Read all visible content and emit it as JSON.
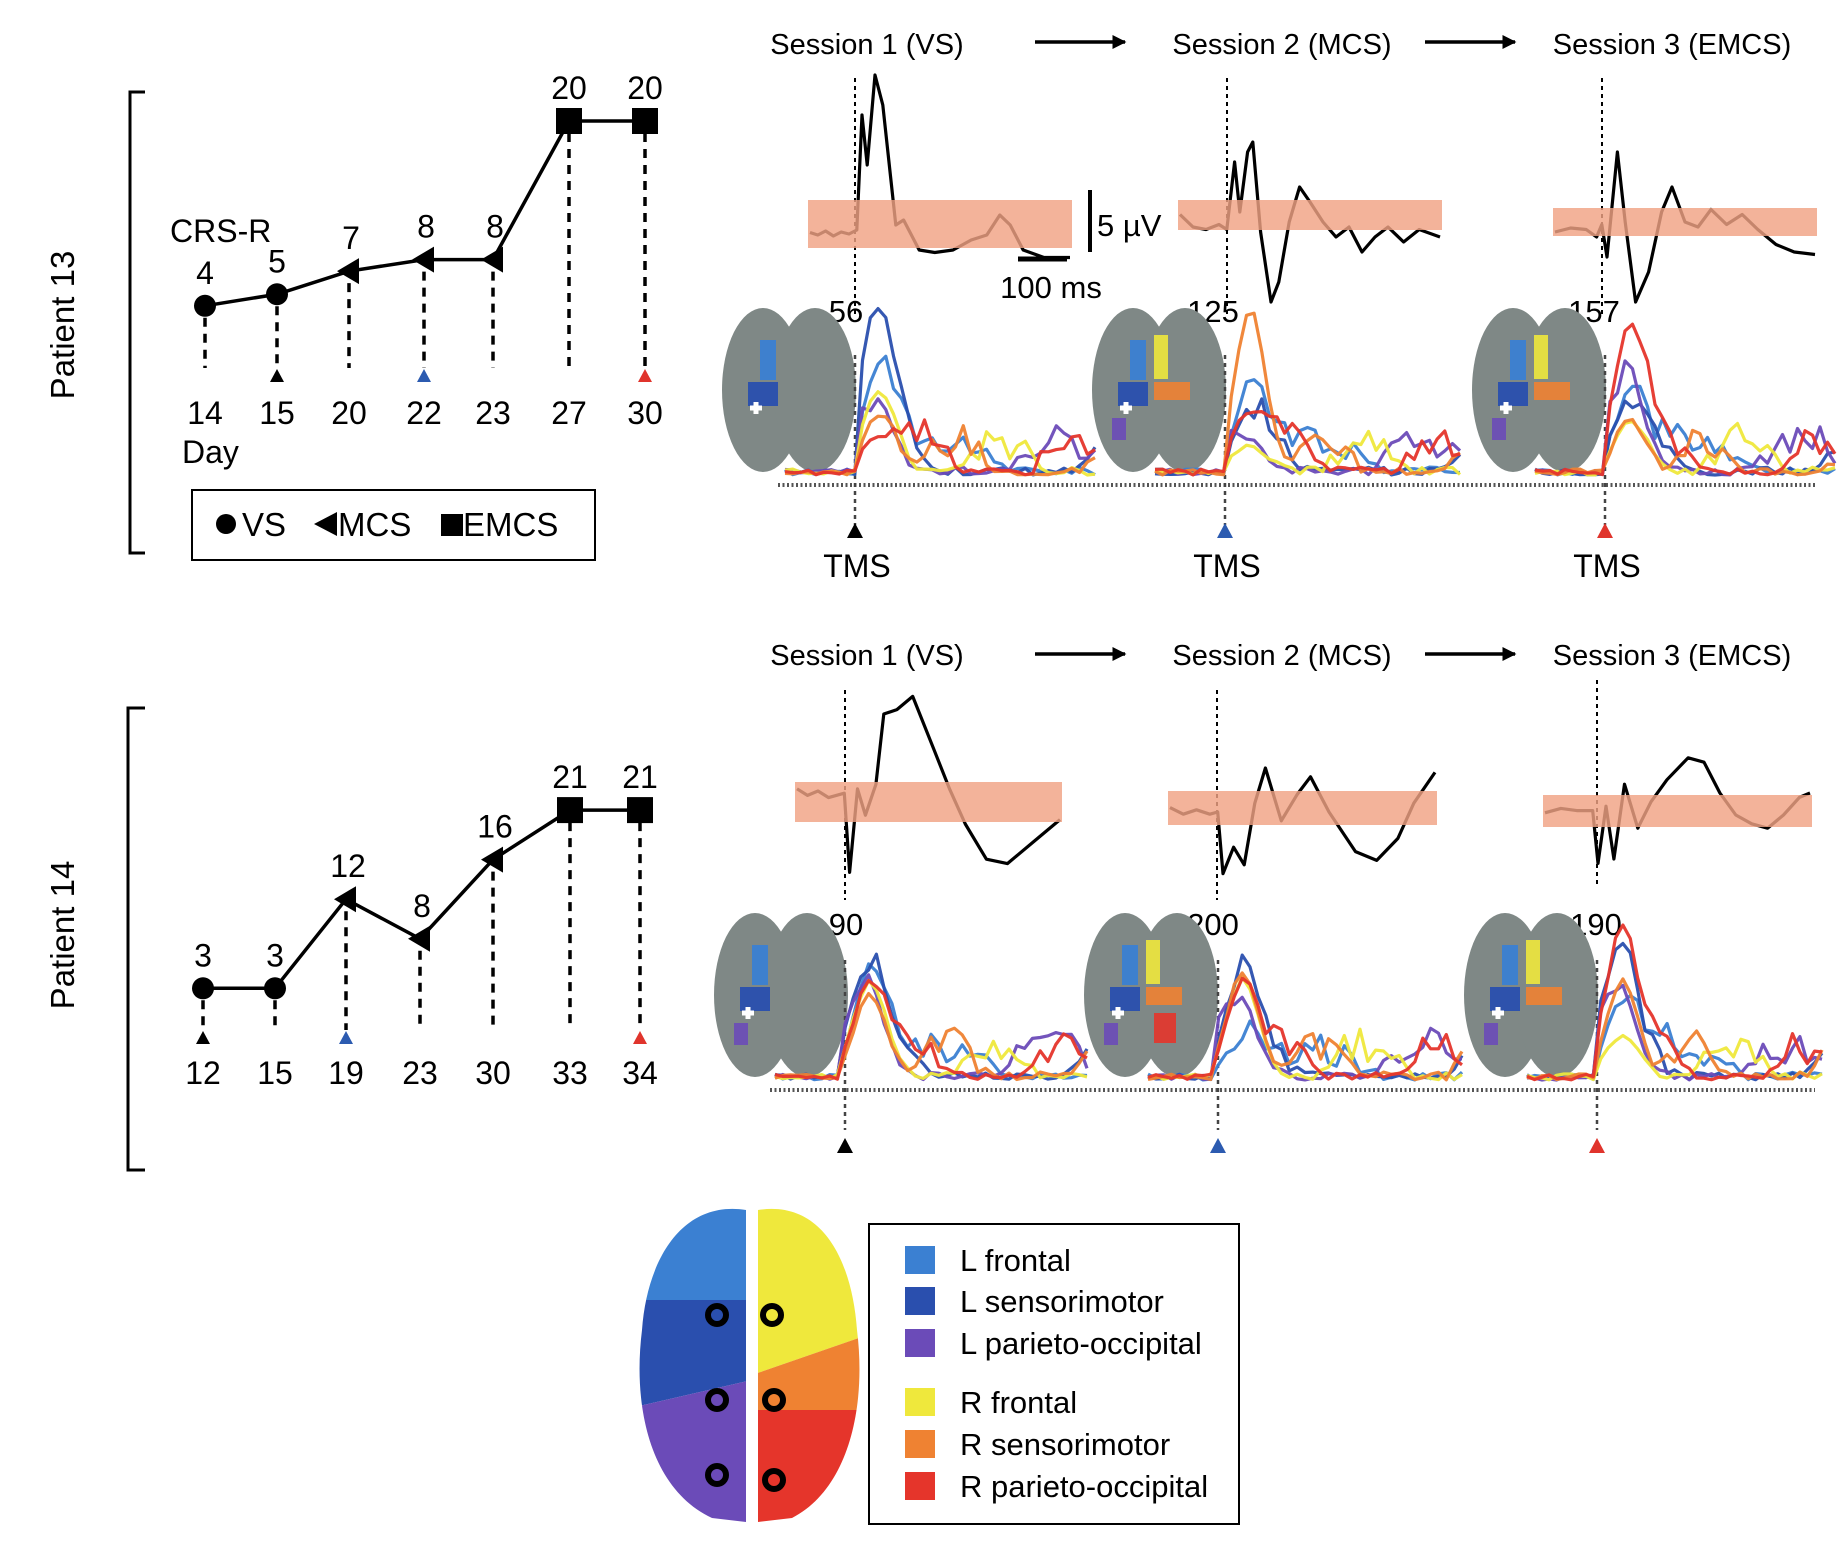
{
  "chart_data": {
    "type": "line",
    "title": "",
    "legend_markers": [
      {
        "marker": "circle",
        "label": "VS"
      },
      {
        "marker": "triangle-left",
        "label": "MCS"
      },
      {
        "marker": "square",
        "label": "EMCS"
      }
    ],
    "patients": [
      {
        "name": "Patient 13",
        "ylabel": "CRS-R",
        "xlabel": "Day",
        "points": [
          {
            "day": "14",
            "score": 4,
            "state": "VS",
            "tms": null
          },
          {
            "day": "15",
            "score": 5,
            "state": "VS",
            "tms": "session1"
          },
          {
            "day": "20",
            "score": 7,
            "state": "MCS",
            "tms": null
          },
          {
            "day": "22",
            "score": 8,
            "state": "MCS",
            "tms": "session2"
          },
          {
            "day": "23",
            "score": 8,
            "state": "MCS",
            "tms": null
          },
          {
            "day": "27",
            "score": 20,
            "state": "EMCS",
            "tms": null
          },
          {
            "day": "30",
            "score": 20,
            "state": "EMCS",
            "tms": "session3"
          }
        ],
        "sessions": [
          {
            "title": "Session 1 (VS)",
            "significant_sources": "56",
            "tms_label": "TMS",
            "marker_color": "#000000"
          },
          {
            "title": "Session 2 (MCS)",
            "significant_sources": "125",
            "tms_label": "TMS",
            "marker_color": "#2c5bb0"
          },
          {
            "title": "Session 3 (EMCS)",
            "significant_sources": "157",
            "tms_label": "TMS",
            "marker_color": "#e0342c"
          }
        ]
      },
      {
        "name": "Patient 14",
        "ylabel": "",
        "xlabel": "",
        "points": [
          {
            "day": "12",
            "score": 3,
            "state": "VS",
            "tms": "session1"
          },
          {
            "day": "15",
            "score": 3,
            "state": "VS",
            "tms": null
          },
          {
            "day": "19",
            "score": 12,
            "state": "MCS",
            "tms": "session2"
          },
          {
            "day": "23",
            "score": 8,
            "state": "MCS",
            "tms": null
          },
          {
            "day": "30",
            "score": 16,
            "state": "MCS",
            "tms": null
          },
          {
            "day": "33",
            "score": 21,
            "state": "EMCS",
            "tms": null
          },
          {
            "day": "34",
            "score": 21,
            "state": "EMCS",
            "tms": "session3"
          }
        ],
        "sessions": [
          {
            "title": "Session 1 (VS)",
            "significant_sources": "90",
            "tms_label": "",
            "marker_color": "#000000"
          },
          {
            "title": "Session 2 (MCS)",
            "significant_sources": "200",
            "tms_label": "",
            "marker_color": "#2c5bb0"
          },
          {
            "title": "Session 3 (EMCS)",
            "significant_sources": "190",
            "tms_label": "",
            "marker_color": "#e0342c"
          }
        ]
      }
    ],
    "scale_bars": {
      "amplitude": "5 µV",
      "time": "100 ms"
    },
    "region_legend": [
      {
        "label": "L frontal",
        "color": "#3b80d2"
      },
      {
        "label": "L sensorimotor",
        "color": "#2a4fae"
      },
      {
        "label": "L parieto-occipital",
        "color": "#6b4bb8"
      },
      {
        "label": "R frontal",
        "color": "#efe83c"
      },
      {
        "label": "R sensorimotor",
        "color": "#ef8232"
      },
      {
        "label": "R parieto-occipital",
        "color": "#e5352b"
      }
    ],
    "baseline_band_color": "#f0a284",
    "brain_gray": "#7f8886"
  }
}
